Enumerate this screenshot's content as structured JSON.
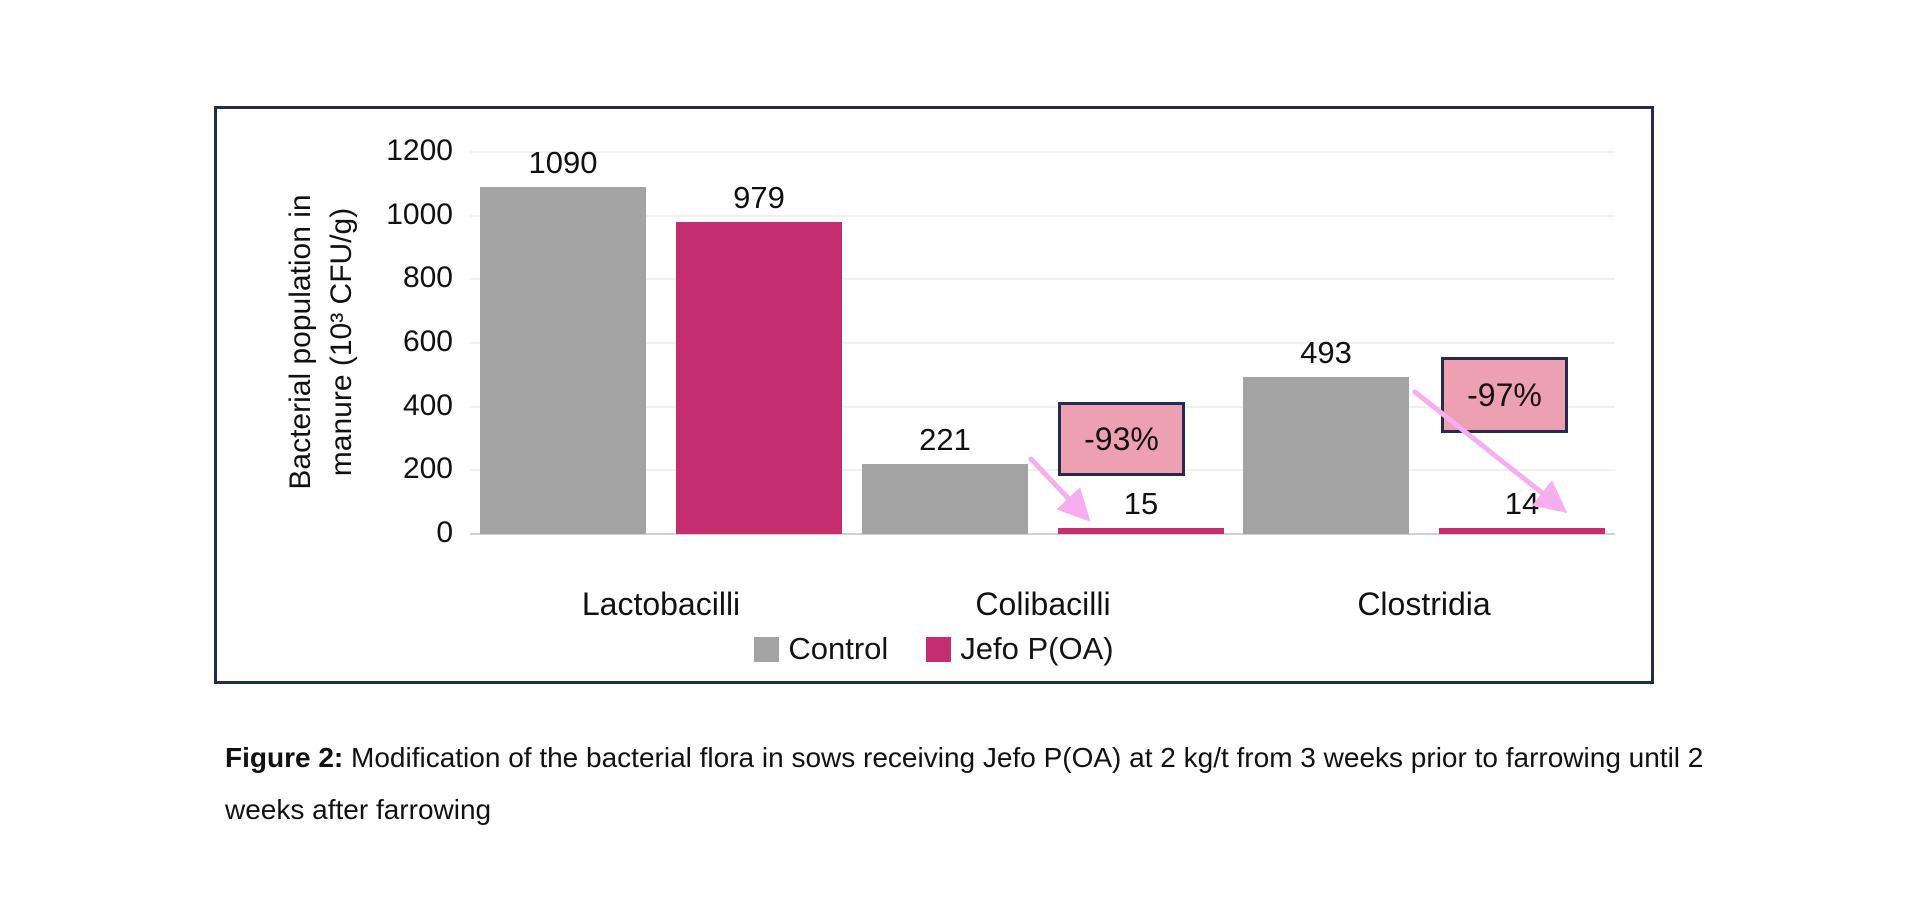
{
  "figure": {
    "caption_label": "Figure 2:",
    "caption_text": " Modification of the bacterial flora in sows receiving Jefo P(OA) at 2 kg/t from 3 weeks prior to farrowing until 2 weeks after farrowing"
  },
  "colors": {
    "control": "#a3a3a3",
    "jefo": "#c42d70",
    "annotation_fill": "#eda0b2",
    "annotation_border": "#252b4a",
    "arrow": "#f6aeee",
    "frame_border": "#252b4a",
    "gridline": "#f0f0f0",
    "axis_line": "#d2d2d2"
  },
  "chart_data": {
    "type": "bar",
    "title": "",
    "ylabel_line1": "Bacterial population in",
    "ylabel_line2": "manure (10³ CFU/g)",
    "xlabel": "",
    "categories": [
      "Lactobacilli",
      "Colibacilli",
      "Clostridia"
    ],
    "series": [
      {
        "name": "Control",
        "color_key": "control",
        "values": [
          1090,
          221,
          493
        ]
      },
      {
        "name": "Jefo P(OA)",
        "color_key": "jefo",
        "values": [
          979,
          15,
          14
        ]
      }
    ],
    "y_ticks": [
      0,
      200,
      400,
      600,
      800,
      1000,
      1200
    ],
    "ylim": [
      0,
      1200
    ],
    "grid": true,
    "legend_position": "bottom",
    "annotations": [
      {
        "text": "-93%",
        "category_index": 1,
        "series": "Jefo P(OA)"
      },
      {
        "text": "-97%",
        "category_index": 2,
        "series": "Jefo P(OA)"
      }
    ]
  }
}
